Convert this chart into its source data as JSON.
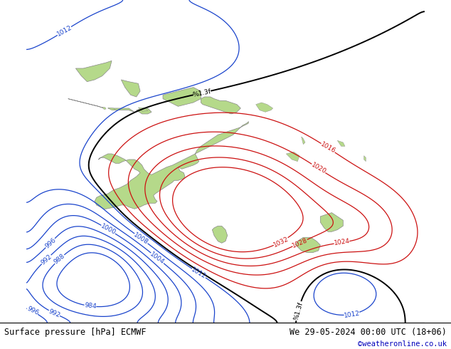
{
  "title_left": "Surface pressure [hPa] ECMWF",
  "title_right": "We 29-05-2024 00:00 UTC (18+06)",
  "credit": "©weatheronline.co.uk",
  "bg_color": "#d8d8d8",
  "land_color": "#b5d98a",
  "figsize": [
    6.34,
    4.9
  ],
  "dpi": 100,
  "xlim": [
    95,
    200
  ],
  "ylim": [
    -65,
    20
  ]
}
